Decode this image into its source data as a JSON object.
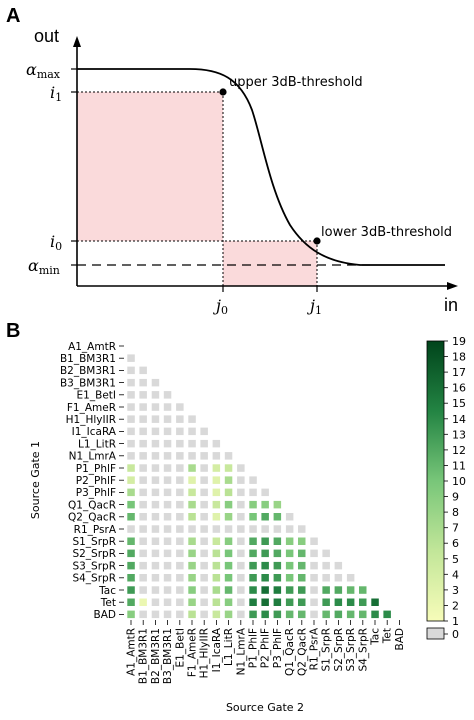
{
  "panel_a": {
    "letter": "A",
    "y_title": "out",
    "x_title": "in",
    "alpha_max": {
      "sym": "α",
      "sub": "max"
    },
    "i1": {
      "sym": "i",
      "sub": "1"
    },
    "i0": {
      "sym": "i",
      "sub": "0"
    },
    "alpha_min": {
      "sym": "α",
      "sub": "min"
    },
    "j0": {
      "sym": "j",
      "sub": "0"
    },
    "j1": {
      "sym": "j",
      "sub": "1"
    },
    "upper_label": "upper 3dB-threshold",
    "lower_label": "lower 3dB-threshold",
    "colors": {
      "shade": "#fadadb",
      "curve": "#000000"
    }
  },
  "panel_b": {
    "letter": "B",
    "y_title": "Source Gate 1",
    "x_title": "Source Gate 2",
    "gates": [
      "A1_AmtR",
      "B1_BM3R1",
      "B2_BM3R1",
      "B3_BM3R1",
      "E1_BetI",
      "F1_AmeR",
      "H1_HlyIIR",
      "I1_IcaRA",
      "L1_LitR",
      "N1_LmrA",
      "P1_PhlF",
      "P2_PhlF",
      "P3_PhlF",
      "Q1_QacR",
      "Q2_QacR",
      "R1_PsrA",
      "S1_SrpR",
      "S2_SrpR",
      "S3_SrpR",
      "S4_SrpR",
      "Tac",
      "Tet",
      "BAD"
    ],
    "colorbar_ticks": [
      1,
      2,
      3,
      4,
      5,
      6,
      7,
      8,
      9,
      10,
      11,
      12,
      13,
      14,
      15,
      16,
      17,
      18,
      19
    ],
    "zero_label": "0",
    "colors": {
      "low": "#f7fcb9",
      "high": "#00441b",
      "zero": "#d9d9d9"
    }
  },
  "chart_data": {
    "type": "heatmap",
    "title": "",
    "xlabel": "Source Gate 2",
    "ylabel": "Source Gate 1",
    "categories": [
      "A1_AmtR",
      "B1_BM3R1",
      "B2_BM3R1",
      "B3_BM3R1",
      "E1_BetI",
      "F1_AmeR",
      "H1_HlyIIR",
      "I1_IcaRA",
      "L1_LitR",
      "N1_LmrA",
      "P1_PhlF",
      "P2_PhlF",
      "P3_PhlF",
      "Q1_QacR",
      "Q2_QacR",
      "R1_PsrA",
      "S1_SrpR",
      "S2_SrpR",
      "S3_SrpR",
      "S4_SrpR",
      "Tac",
      "Tet",
      "BAD"
    ],
    "value_range": [
      0,
      19
    ],
    "matrix": [
      [],
      [
        0
      ],
      [
        0,
        0
      ],
      [
        0,
        0,
        0
      ],
      [
        0,
        0,
        0,
        0
      ],
      [
        0,
        0,
        0,
        0,
        0
      ],
      [
        0,
        0,
        0,
        0,
        0,
        0
      ],
      [
        0,
        0,
        0,
        0,
        0,
        0,
        0
      ],
      [
        0,
        0,
        0,
        0,
        0,
        0,
        0,
        0
      ],
      [
        0,
        0,
        0,
        0,
        0,
        0,
        0,
        0,
        0
      ],
      [
        5,
        0,
        0,
        0,
        0,
        7,
        0,
        4,
        5,
        0
      ],
      [
        4,
        0,
        0,
        0,
        0,
        3,
        0,
        3,
        7,
        0,
        0
      ],
      [
        7,
        0,
        0,
        0,
        0,
        5,
        0,
        3,
        6,
        0,
        0,
        0
      ],
      [
        10,
        0,
        0,
        0,
        0,
        7,
        0,
        5,
        9,
        0,
        9,
        9,
        8
      ],
      [
        11,
        0,
        0,
        0,
        0,
        6,
        0,
        3,
        8,
        0,
        10,
        12,
        11,
        0
      ],
      [
        0,
        0,
        0,
        0,
        0,
        0,
        0,
        0,
        0,
        0,
        0,
        0,
        0,
        0,
        0
      ],
      [
        11,
        0,
        0,
        0,
        0,
        7,
        0,
        5,
        9,
        0,
        12,
        13,
        12,
        9,
        9,
        0
      ],
      [
        12,
        0,
        0,
        0,
        0,
        8,
        0,
        6,
        10,
        0,
        12,
        13,
        12,
        10,
        11,
        0,
        0
      ],
      [
        12,
        0,
        0,
        0,
        0,
        8,
        0,
        6,
        10,
        0,
        13,
        14,
        13,
        10,
        11,
        0,
        0,
        0
      ],
      [
        12,
        0,
        0,
        0,
        0,
        8,
        0,
        6,
        10,
        0,
        13,
        14,
        13,
        10,
        11,
        0,
        0,
        0,
        0
      ],
      [
        13,
        0,
        0,
        0,
        0,
        9,
        0,
        7,
        11,
        0,
        14,
        16,
        15,
        13,
        13,
        0,
        12,
        12,
        11,
        11
      ],
      [
        12,
        2,
        0,
        0,
        0,
        8,
        0,
        6,
        9,
        0,
        15,
        16,
        15,
        13,
        13,
        0,
        13,
        14,
        14,
        13,
        16
      ],
      [
        9,
        0,
        0,
        0,
        0,
        6,
        0,
        5,
        8,
        0,
        13,
        14,
        13,
        11,
        11,
        0,
        11,
        12,
        11,
        11,
        14,
        14
      ]
    ]
  }
}
